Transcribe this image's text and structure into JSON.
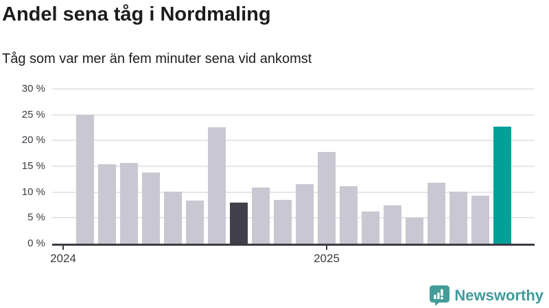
{
  "header": {
    "title": "Andel sena tåg i Nordmaling",
    "subtitle": "Tåg som var mer än fem minuter sena vid ankomst"
  },
  "chart_data": {
    "type": "bar",
    "title": "Andel sena tåg i Nordmaling",
    "subtitle": "Tåg som var mer än fem minuter sena vid ankomst",
    "unit": "%",
    "ylim": [
      0,
      30
    ],
    "grid": "horizontal",
    "legend": "none",
    "y_ticks": [
      {
        "label": "30 %",
        "value": 30
      },
      {
        "label": "25 %",
        "value": 25
      },
      {
        "label": "20 %",
        "value": 20
      },
      {
        "label": "15 %",
        "value": 15
      },
      {
        "label": "10 %",
        "value": 10
      },
      {
        "label": "5 %",
        "value": 5
      },
      {
        "label": "0 %",
        "value": 0
      }
    ],
    "x_ticks": [
      {
        "label": "2024",
        "slot": 0
      },
      {
        "label": "2025",
        "slot": 12
      }
    ],
    "bars": [
      {
        "value": 24.9,
        "role": "base"
      },
      {
        "value": 15.4,
        "role": "base"
      },
      {
        "value": 15.6,
        "role": "base"
      },
      {
        "value": 13.8,
        "role": "base"
      },
      {
        "value": 10.1,
        "role": "base"
      },
      {
        "value": 8.4,
        "role": "base"
      },
      {
        "value": 22.6,
        "role": "base"
      },
      {
        "value": 7.9,
        "role": "highlight-dark"
      },
      {
        "value": 10.9,
        "role": "base"
      },
      {
        "value": 8.5,
        "role": "base"
      },
      {
        "value": 11.6,
        "role": "base"
      },
      {
        "value": 17.8,
        "role": "base"
      },
      {
        "value": 11.1,
        "role": "base"
      },
      {
        "value": 6.2,
        "role": "base"
      },
      {
        "value": 7.5,
        "role": "base"
      },
      {
        "value": 5.1,
        "role": "base"
      },
      {
        "value": 11.8,
        "role": "base"
      },
      {
        "value": 10.1,
        "role": "base"
      },
      {
        "value": 9.3,
        "role": "base"
      },
      {
        "value": 22.7,
        "role": "highlight-accent"
      }
    ],
    "colors": {
      "base": "#c9c7d1",
      "highlight-dark": "#413f4c",
      "highlight-accent": "#00a099",
      "axis": "#3b3a43",
      "gridline": "#e7e5ea"
    }
  },
  "footer": {
    "brand": "Newsworthy",
    "brand_color": "#3f9b98",
    "logo_icon": "newsworthy-speech-bubble-chart-icon"
  }
}
